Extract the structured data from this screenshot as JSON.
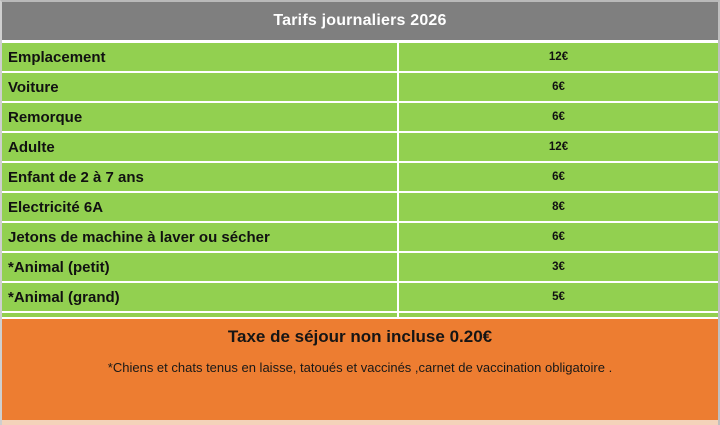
{
  "table": {
    "title": "Tarifs journaliers 2026",
    "rows": [
      {
        "label": "Emplacement",
        "price": "12€"
      },
      {
        "label": "Voiture",
        "price": "6€"
      },
      {
        "label": "Remorque",
        "price": "6€"
      },
      {
        "label": "Adulte",
        "price": "12€"
      },
      {
        "label": "Enfant de 2 à 7 ans",
        "price": "6€"
      },
      {
        "label": "Electricité 6A",
        "price": "8€"
      },
      {
        "label": "Jetons de machine à laver ou sécher",
        "price": "6€"
      },
      {
        "label": "*Animal (petit)",
        "price": "3€"
      },
      {
        "label": "*Animal (grand)",
        "price": "5€"
      }
    ]
  },
  "footer": {
    "title": "Taxe de séjour non incluse 0.20€",
    "note": "*Chiens et chats tenus en laisse, tatoués et vaccinés ,carnet de vaccination obligatoire ."
  },
  "colors": {
    "header_bg": "#7F7F7F",
    "row_bg": "#92D050",
    "footer_bg": "#ED7D31",
    "bottom_strip": "#F4D3BA",
    "grid_line": "#FFFFFF"
  }
}
